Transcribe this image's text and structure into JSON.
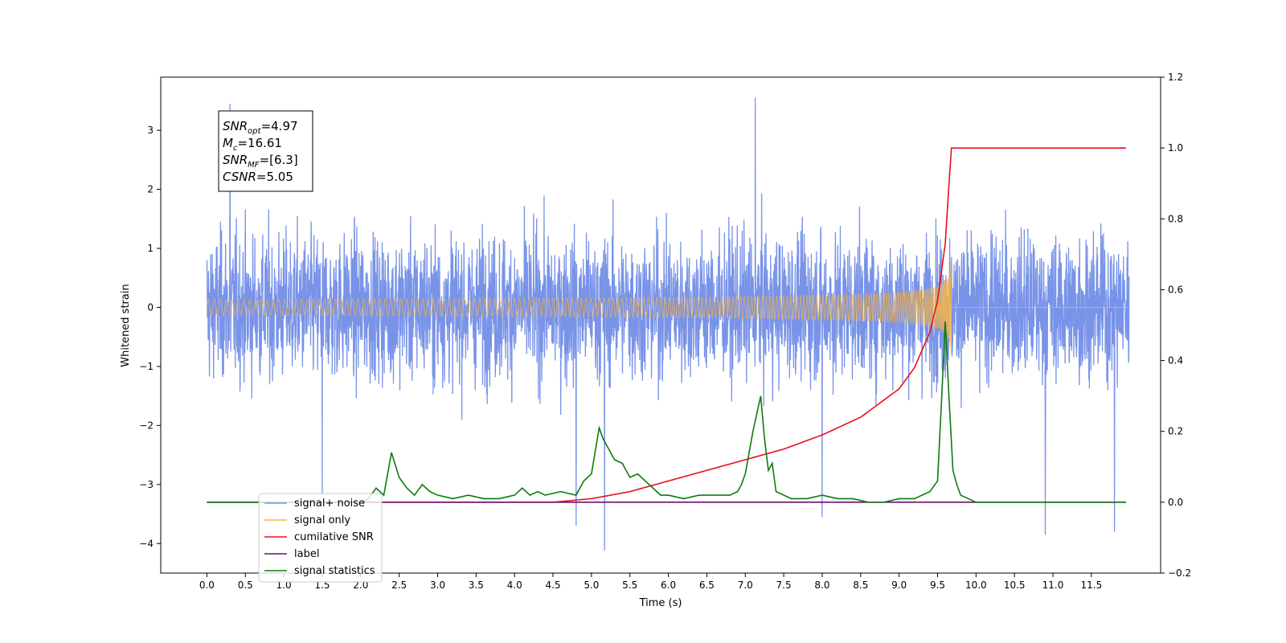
{
  "chart_data": {
    "type": "line",
    "title": "",
    "xlabel": "Time (s)",
    "ylabel": "Whitened strain",
    "y2label": "",
    "xlim": [
      -0.6,
      12.4
    ],
    "ylim": [
      -4.5,
      3.9
    ],
    "y2lim": [
      -0.2,
      1.2
    ],
    "x_ticks": [
      0.0,
      0.5,
      1.0,
      1.5,
      2.0,
      2.5,
      3.0,
      3.5,
      4.0,
      4.5,
      5.0,
      5.5,
      6.0,
      6.5,
      7.0,
      7.5,
      8.0,
      8.5,
      9.0,
      9.5,
      10.0,
      10.5,
      11.0,
      11.5
    ],
    "x_tick_labels": [
      "0.0",
      "0.5",
      "1.0",
      "1.5",
      "2.0",
      "2.5",
      "3.0",
      "3.5",
      "4.0",
      "4.5",
      "5.0",
      "5.5",
      "6.0",
      "6.5",
      "7.0",
      "7.5",
      "8.0",
      "8.5",
      "9.0",
      "9.5",
      "10.0",
      "10.5",
      "11.0",
      "11.5"
    ],
    "y_ticks": [
      -4,
      -3,
      -2,
      -1,
      0,
      1,
      2,
      3
    ],
    "y_tick_labels": [
      "−4",
      "−3",
      "−2",
      "−1",
      "0",
      "1",
      "2",
      "3"
    ],
    "y2_ticks": [
      -0.2,
      0.0,
      0.2,
      0.4,
      0.6,
      0.8,
      1.0,
      1.2
    ],
    "y2_tick_labels": [
      "−0.2",
      "0.0",
      "0.2",
      "0.4",
      "0.6",
      "0.8",
      "1.0",
      "1.2"
    ],
    "grid": false,
    "legend_position": "lower-left",
    "annotation": {
      "lines": [
        {
          "var": "SNR",
          "sub": "opt",
          "value": "=4.97"
        },
        {
          "var": "M",
          "sub": "c",
          "value": "=16.61"
        },
        {
          "var": "SNR",
          "sub": "MF",
          "value": "=[6.3]"
        },
        {
          "var": "CSNR",
          "sub": "",
          "value": "=5.05"
        }
      ]
    },
    "series": [
      {
        "name": "signal+ noise",
        "color": "#7893e8",
        "axis": "left",
        "description_x_range": [
          0.0,
          11.99
        ],
        "noise_envelope": [
          -3.0,
          3.5
        ],
        "peaks": [
          [
            0.3,
            3.45
          ],
          [
            7.13,
            3.55
          ],
          [
            5.17,
            -4.12
          ],
          [
            10.9,
            -3.85
          ],
          [
            11.8,
            -3.8
          ],
          [
            1.5,
            -3.15
          ],
          [
            8.0,
            -3.55
          ],
          [
            4.8,
            -3.7
          ]
        ]
      },
      {
        "name": "signal only",
        "color": "#f5b347",
        "axis": "left",
        "chirp_end": 9.68,
        "max_amplitude": 0.95
      },
      {
        "name": "cumilative SNR",
        "color": "#e8101a",
        "axis": "right",
        "x": [
          0.0,
          4.5,
          5.0,
          5.5,
          6.0,
          6.5,
          7.0,
          7.5,
          8.0,
          8.5,
          9.0,
          9.2,
          9.4,
          9.5,
          9.6,
          9.64,
          9.68,
          11.95
        ],
        "values": [
          0.0,
          0.0,
          0.01,
          0.03,
          0.06,
          0.09,
          0.12,
          0.15,
          0.19,
          0.24,
          0.32,
          0.38,
          0.48,
          0.57,
          0.73,
          0.87,
          1.0,
          1.0
        ]
      },
      {
        "name": "label",
        "color": "#6a0f6e",
        "axis": "right",
        "x": [
          0.0,
          11.95
        ],
        "values": [
          0.0,
          0.0
        ]
      },
      {
        "name": "signal statistics",
        "color": "#0e7a0e",
        "axis": "right",
        "x": [
          0.0,
          1.0,
          2.0,
          2.1,
          2.2,
          2.3,
          2.4,
          2.5,
          2.6,
          2.7,
          2.8,
          2.9,
          3.0,
          3.2,
          3.4,
          3.6,
          3.8,
          4.0,
          4.1,
          4.2,
          4.3,
          4.4,
          4.6,
          4.8,
          4.9,
          5.0,
          5.1,
          5.15,
          5.2,
          5.3,
          5.4,
          5.5,
          5.6,
          5.7,
          5.8,
          5.9,
          6.0,
          6.2,
          6.4,
          6.6,
          6.8,
          6.9,
          6.95,
          7.0,
          7.1,
          7.2,
          7.25,
          7.3,
          7.35,
          7.4,
          7.6,
          7.8,
          8.0,
          8.2,
          8.4,
          8.6,
          8.8,
          9.0,
          9.2,
          9.4,
          9.5,
          9.55,
          9.6,
          9.65,
          9.7,
          9.75,
          9.8,
          9.9,
          10.0,
          10.2,
          10.5,
          11.0,
          11.95
        ],
        "values": [
          0.0,
          0.0,
          0.0,
          0.01,
          0.04,
          0.02,
          0.14,
          0.07,
          0.04,
          0.02,
          0.05,
          0.03,
          0.02,
          0.01,
          0.02,
          0.01,
          0.01,
          0.02,
          0.04,
          0.02,
          0.03,
          0.02,
          0.03,
          0.02,
          0.06,
          0.08,
          0.21,
          0.18,
          0.16,
          0.12,
          0.11,
          0.07,
          0.08,
          0.06,
          0.04,
          0.02,
          0.02,
          0.01,
          0.02,
          0.02,
          0.02,
          0.03,
          0.05,
          0.08,
          0.2,
          0.3,
          0.18,
          0.09,
          0.11,
          0.03,
          0.01,
          0.01,
          0.02,
          0.01,
          0.01,
          0.0,
          0.0,
          0.01,
          0.01,
          0.03,
          0.06,
          0.28,
          0.51,
          0.29,
          0.09,
          0.05,
          0.02,
          0.01,
          0.0,
          0.0,
          0.0,
          0.0,
          0.0
        ]
      }
    ]
  }
}
